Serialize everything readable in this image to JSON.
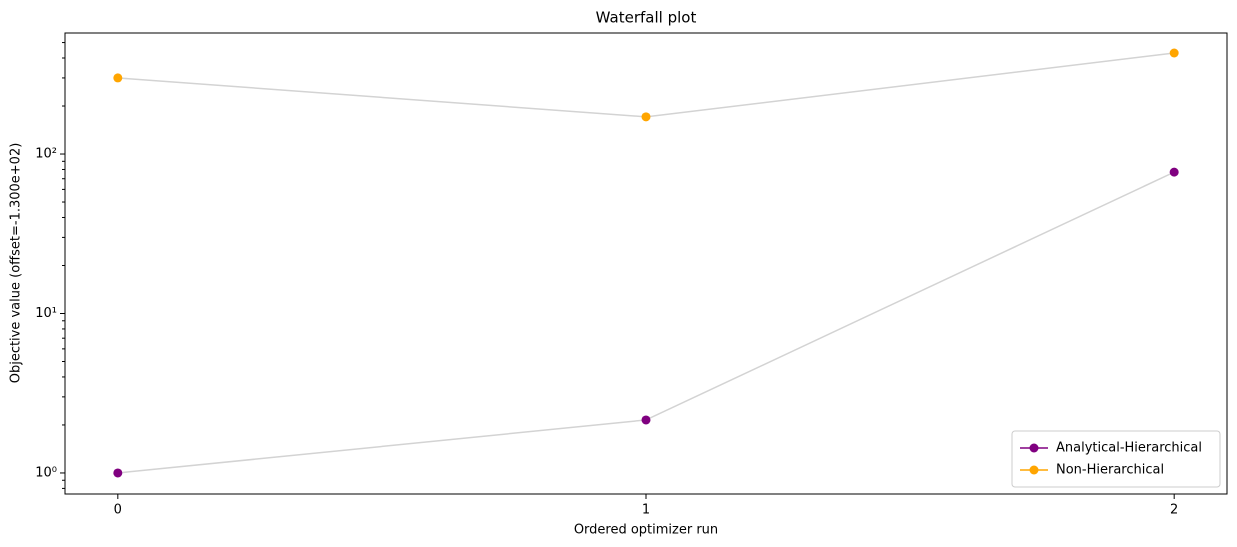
{
  "chart_data": {
    "type": "line",
    "title": "Waterfall plot",
    "x_label": "Ordered optimizer run",
    "y_label": "Objective value (offset=-1.300e+02)",
    "x": [
      0,
      1,
      2
    ],
    "series": [
      {
        "name": "Analytical-Hierarchical",
        "color": "#800080",
        "values": [
          1.0,
          2.15,
          77
        ]
      },
      {
        "name": "Non-Hierarchical",
        "color": "#ffa500",
        "values": [
          300,
          171,
          430
        ]
      }
    ],
    "line_color": "#d3d3d3",
    "xlim": [
      -0.1,
      2.1
    ],
    "xticks": [
      0,
      1,
      2
    ],
    "ylim": [
      0.738,
      574
    ],
    "log_y": true,
    "yticks": [
      {
        "value": 1,
        "label": "10⁰"
      },
      {
        "value": 10,
        "label": "10¹"
      },
      {
        "value": 100,
        "label": "10²"
      }
    ],
    "yminorticks": [
      0.8,
      0.9,
      2,
      3,
      4,
      5,
      6,
      7,
      8,
      9,
      20,
      30,
      40,
      50,
      60,
      70,
      80,
      90,
      200,
      300,
      400,
      500
    ],
    "legend": "lower right"
  }
}
